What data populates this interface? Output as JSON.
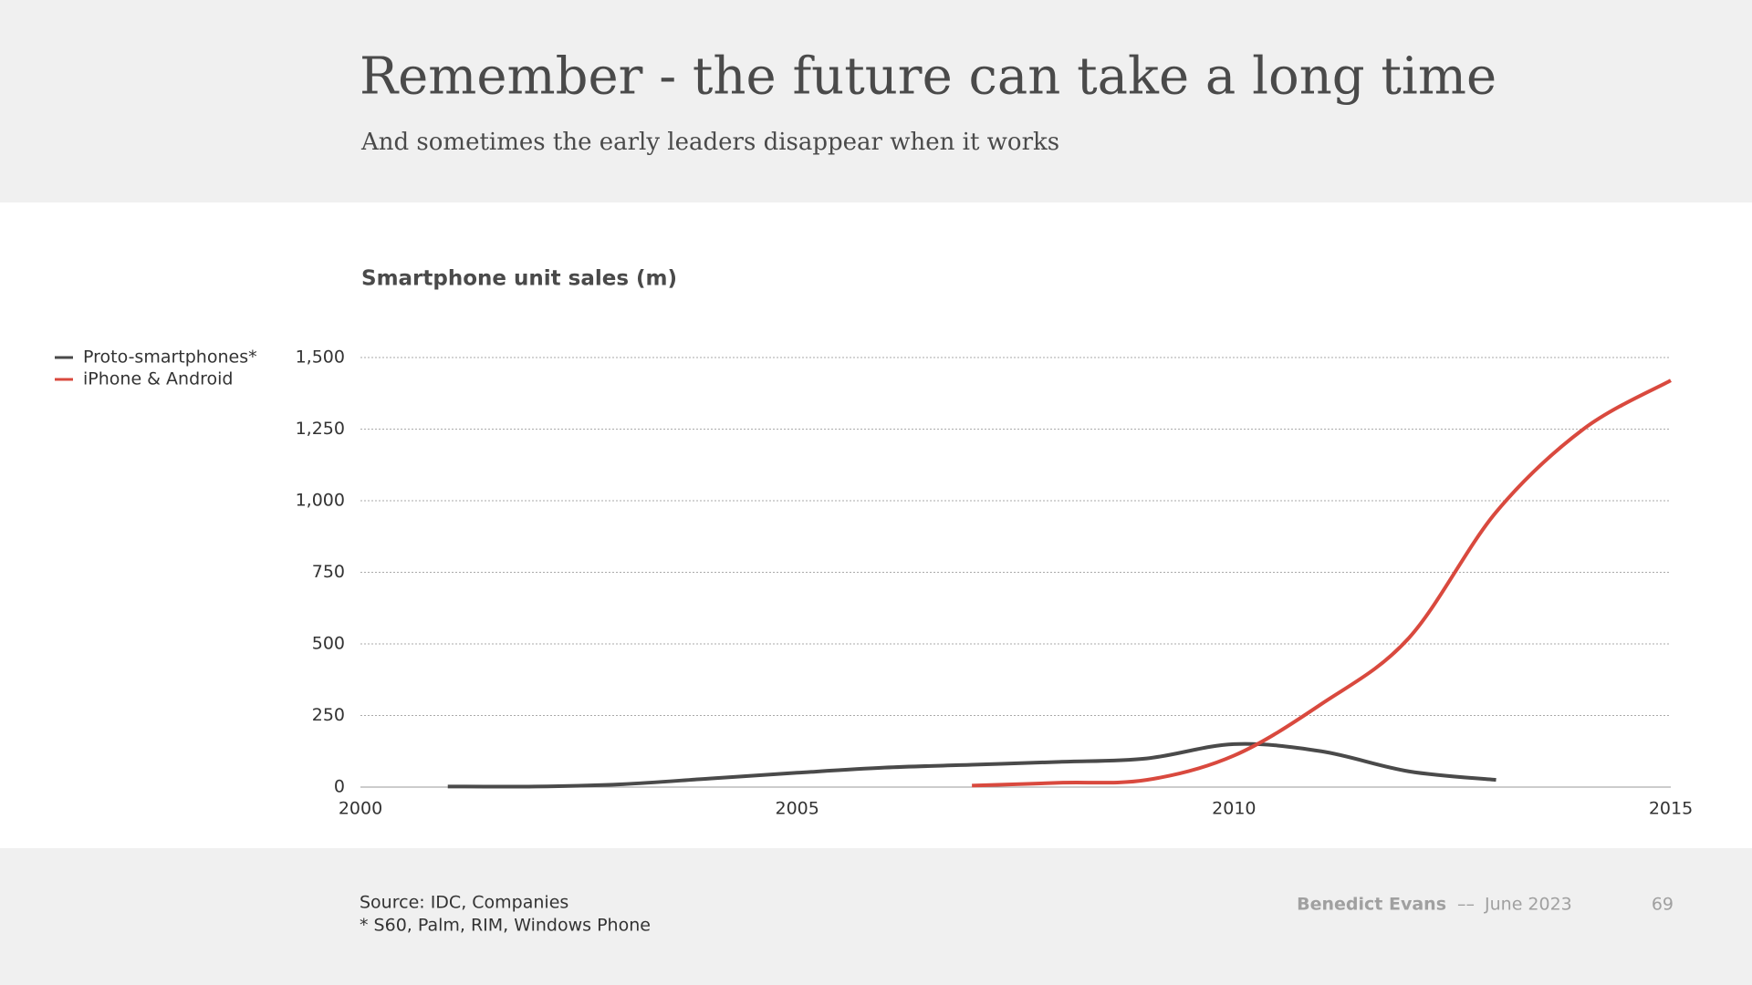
{
  "chart_data": {
    "type": "line",
    "title": "Remember - the future can take a long time",
    "subtitle": "And sometimes the early leaders disappear when it works",
    "y_label": "Smartphone unit sales (m)",
    "x": [
      2001,
      2002,
      2003,
      2004,
      2005,
      2006,
      2007,
      2008,
      2009,
      2010,
      2011,
      2012,
      2013,
      2014,
      2015
    ],
    "series": [
      {
        "name": "Proto-smartphones*",
        "color": "#4a4a4a",
        "values": [
          2,
          2,
          10,
          30,
          50,
          68,
          78,
          88,
          100,
          150,
          125,
          55,
          25,
          null,
          null
        ]
      },
      {
        "name": "iPhone & Android",
        "color": "#d9493e",
        "values": [
          null,
          null,
          null,
          null,
          null,
          null,
          5,
          15,
          25,
          110,
          290,
          520,
          960,
          1250,
          1420
        ]
      }
    ],
    "xlim": [
      2000,
      2015
    ],
    "xticks": [
      2000,
      2005,
      2010,
      2015
    ],
    "ylim": [
      0,
      1500
    ],
    "yticks": [
      0,
      250,
      500,
      750,
      {
        "value": 1000,
        "label": "1,000"
      },
      {
        "value": 1250,
        "label": "1,250"
      },
      {
        "value": 1500,
        "label": "1,500"
      }
    ],
    "grid": true,
    "legend": "top-left"
  },
  "footer": {
    "source": "Source: IDC, Companies",
    "note": "* S60, Palm, RIM, Windows Phone",
    "author": "Benedict Evans",
    "separator": "––",
    "date": "June 2023",
    "page": "69"
  }
}
